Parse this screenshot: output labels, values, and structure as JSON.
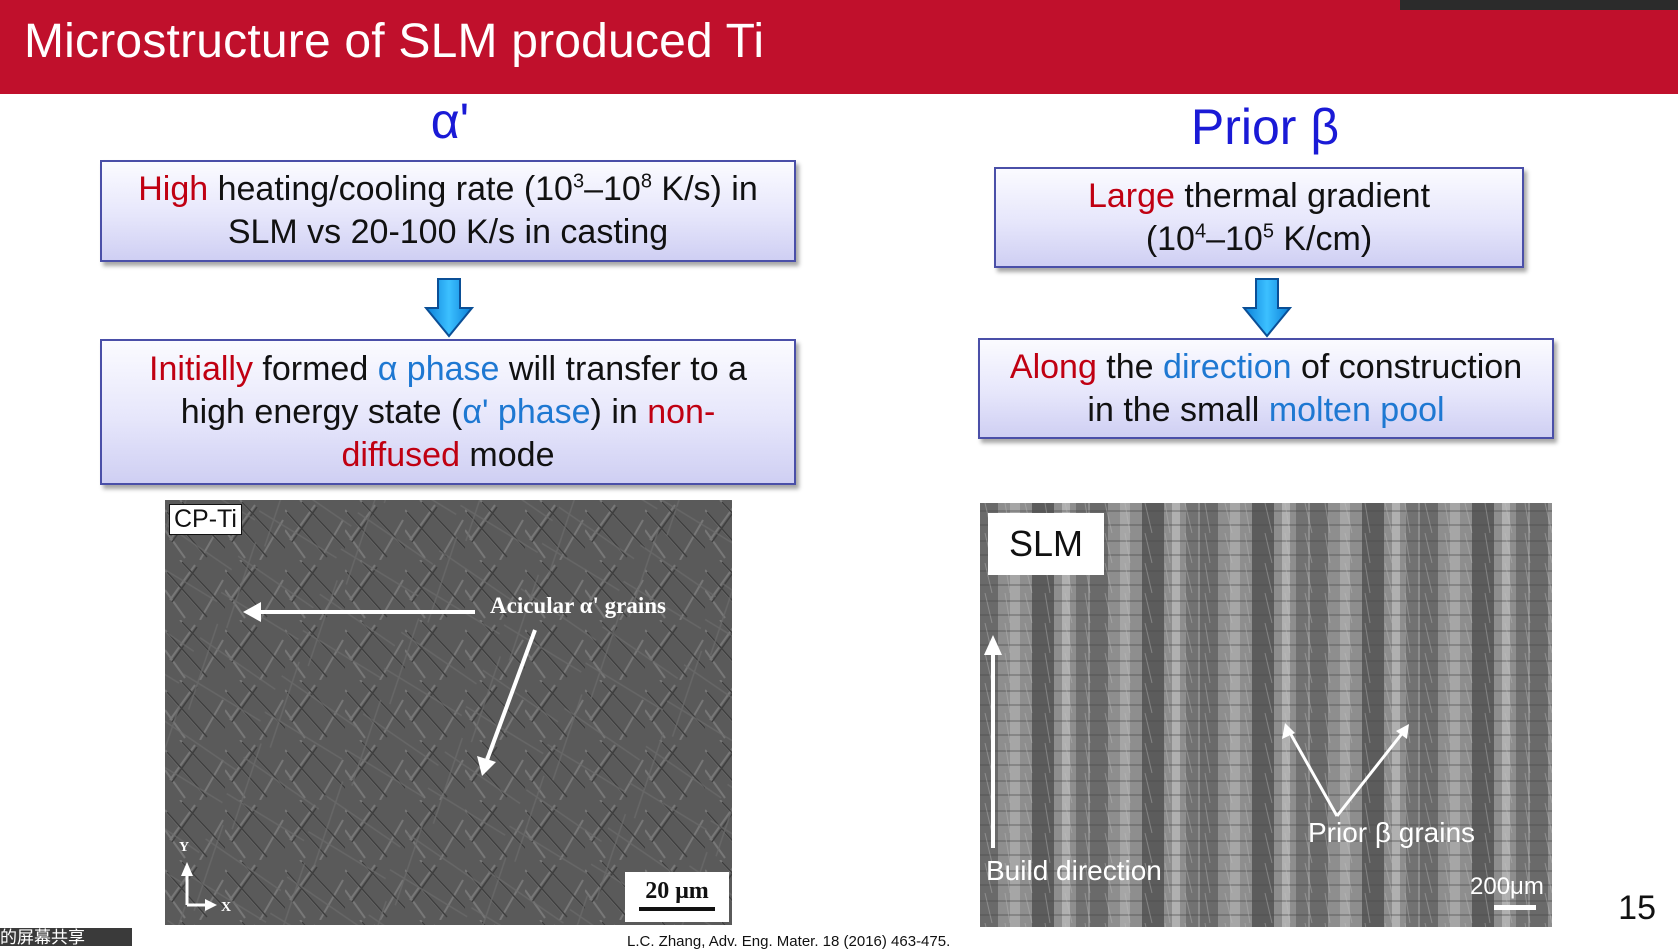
{
  "slide": {
    "title": "Microstructure of SLM produced Ti",
    "page_number": "15",
    "citation": "L.C. Zhang, Adv. Eng. Mater. 18 (2016) 463-475.",
    "share_label": "的屏幕共享",
    "header_color": "#c0102c"
  },
  "left": {
    "heading": "α'",
    "box1": {
      "highlight": "High",
      "text_a": " heating/cooling rate (10",
      "exp1": "3",
      "text_b": "–10",
      "exp2": "8",
      "text_c": " K/s) in",
      "line2": "SLM vs 20-100 K/s in casting"
    },
    "box2": {
      "w1": "Initially",
      "w2": " formed ",
      "w3": "α phase",
      "w4": " will transfer to a",
      "w5": "high energy state (",
      "w6": "α' phase",
      "w7": ") in ",
      "w8": "non-",
      "w9": "diffused",
      "w10": " mode"
    },
    "image": {
      "label": "CP-Ti",
      "annotation": "Acicular α' grains",
      "scale_bar": "20 μm",
      "axis_y": "Y",
      "axis_x": "X"
    }
  },
  "right": {
    "heading": "Prior β",
    "box1": {
      "highlight": "Large",
      "text_a": " thermal gradient",
      "l2a": "(10",
      "exp1": "4",
      "l2b": "–10",
      "exp2": "5",
      "l2c": " K/cm)"
    },
    "box2": {
      "w1": "Along",
      "w2": " the ",
      "w3": "direction",
      "w4": " of construction",
      "w5": "in the small ",
      "w6": "molten pool"
    },
    "image": {
      "label": "SLM",
      "build_direction": "Build direction",
      "annotation": "Prior β grains",
      "scale_bar": "200μm"
    }
  },
  "colors": {
    "red_text": "#c00012",
    "blue_text": "#1e78d2",
    "heading_blue": "#1a1ad6",
    "arrow_blue": "#16a0ec"
  }
}
